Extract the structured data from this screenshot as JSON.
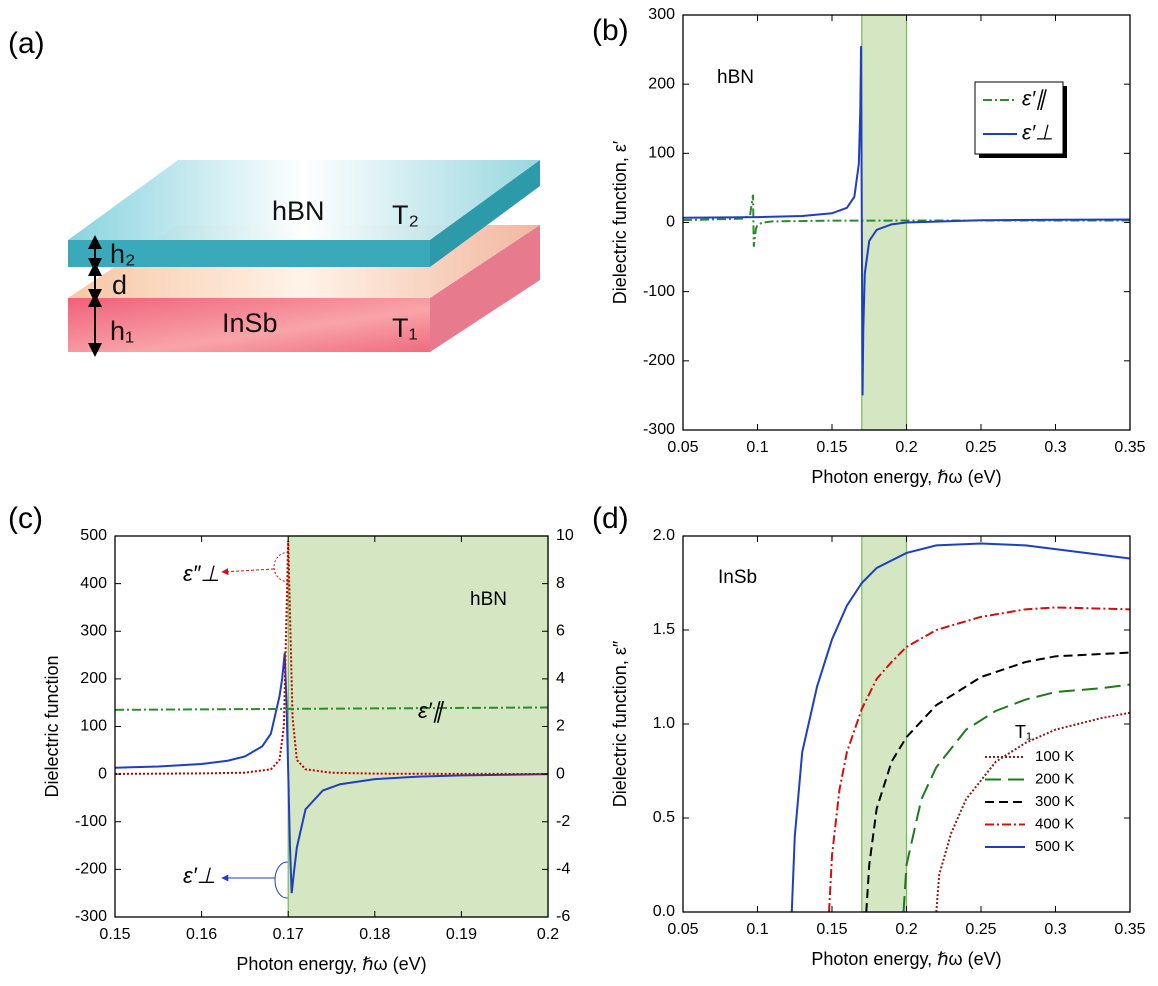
{
  "diagram": {
    "label": "(a)",
    "top_layer": "hBN",
    "top_temperature": "T₂",
    "bottom_layer": "InSb",
    "bottom_temperature": "T₁",
    "top_thickness": "h₂",
    "gap": "d",
    "bottom_thickness": "h₁"
  },
  "chart_data": [
    {
      "type": "line",
      "label": "(b)",
      "xlabel": "Photon energy, ℏω (eV)",
      "ylabel": "Dielectric function, ε′",
      "annotations": [
        {
          "text": "hBN",
          "color": "#000000"
        }
      ],
      "xlim": [
        0.05,
        0.35
      ],
      "xticks": [
        0.05,
        0.1,
        0.15,
        0.2,
        0.25,
        0.3,
        0.35
      ],
      "ylim": [
        -300,
        300
      ],
      "yticks": [
        -300,
        -200,
        -100,
        0,
        100,
        200,
        300
      ],
      "grid": false,
      "shaded_region": [
        0.17,
        0.2
      ],
      "shade_color": "#d5e6c3",
      "legend": "upper right",
      "series": [
        {
          "name": "ε′∥",
          "color": "#2e8b2e",
          "dash": "dash-dot",
          "x": [
            0.05,
            0.09,
            0.095,
            0.097,
            0.0975,
            0.099,
            0.1,
            0.103,
            0.11,
            0.15,
            0.2,
            0.25,
            0.3,
            0.35
          ],
          "values": [
            3.46,
            5.51,
            10.6,
            40,
            -35,
            -8.4,
            -3.97,
            -0.21,
            1.59,
            2.68,
            2.83,
            2.9,
            2.92,
            2.94
          ]
        },
        {
          "name": "ε′⊥",
          "color": "#1f3fbf",
          "dash": "solid",
          "x": [
            0.05,
            0.1,
            0.13,
            0.15,
            0.16,
            0.165,
            0.168,
            0.169,
            0.1695,
            0.17,
            0.1705,
            0.171,
            0.172,
            0.175,
            0.18,
            0.19,
            0.2,
            0.25,
            0.3,
            0.35
          ],
          "values": [
            6.92,
            7.73,
            9.37,
            13.3,
            21.2,
            37.1,
            84.8,
            164,
            255,
            5,
            -250,
            -154,
            -74,
            -26.5,
            -10.6,
            -2.64,
            0,
            3.26,
            3.98,
            4.29
          ]
        }
      ]
    },
    {
      "type": "line",
      "label": "(c)",
      "xlabel": "Photon energy, ℏω (eV)",
      "ylabel": "Dielectric function",
      "annotations": [
        {
          "text": "hBN",
          "color": "#1a3a1a"
        },
        {
          "text": "ε″⊥",
          "color": "#c00000"
        },
        {
          "text": "ε′∥",
          "color": "#1e7a1e"
        },
        {
          "text": "ε′⊥",
          "color": "#1f3fbf"
        }
      ],
      "xlim": [
        0.15,
        0.2
      ],
      "xticks": [
        0.15,
        0.16,
        0.17,
        0.18,
        0.19,
        0.2
      ],
      "ylim": [
        -300,
        500
      ],
      "yticks": [
        -300,
        -200,
        -100,
        0,
        100,
        200,
        300,
        400,
        500
      ],
      "y2lim": [
        -6,
        10
      ],
      "y2ticks": [
        -6,
        -4,
        -2,
        0,
        2,
        4,
        6,
        8,
        10
      ],
      "grid": false,
      "shaded_region": [
        0.17,
        0.2
      ],
      "shade_color": "#d5e6c3",
      "series": [
        {
          "color": "#1f3fbf",
          "dash": "solid",
          "x": [
            0.15,
            0.155,
            0.16,
            0.163,
            0.165,
            0.167,
            0.168,
            0.169,
            0.1693,
            0.1696,
            0.1698,
            0.17,
            0.1702,
            0.1704,
            0.1707,
            0.171,
            0.172,
            0.174,
            0.176,
            0.18,
            0.185,
            0.19,
            0.2
          ],
          "values": [
            13.3,
            16,
            21.2,
            28.1,
            37.1,
            58.3,
            84.8,
            164,
            200,
            255,
            150,
            5,
            -150,
            -250,
            -200,
            -154,
            -74,
            -34.4,
            -21.2,
            -10.6,
            -5.28,
            -2.64,
            0
          ]
        },
        {
          "color": "#c00000",
          "dash": "dot",
          "x": [
            0.15,
            0.16,
            0.165,
            0.168,
            0.169,
            0.1695,
            0.17,
            0.1705,
            0.171,
            0.172,
            0.175,
            0.18,
            0.19,
            0.2
          ],
          "values": [
            0.5,
            1.5,
            3,
            10,
            30,
            100,
            490,
            120,
            30,
            10,
            3,
            1,
            0.5,
            0.3
          ]
        },
        {
          "color": "#2e8b2e",
          "dash": "dash-dot",
          "axis": "y2",
          "x": [
            0.15,
            0.16,
            0.17,
            0.18,
            0.19,
            0.2
          ],
          "values": [
            2.7,
            2.72,
            2.74,
            2.76,
            2.78,
            2.8
          ]
        }
      ]
    },
    {
      "type": "line",
      "label": "(d)",
      "xlabel": "Photon energy, ℏω (eV)",
      "ylabel": "Dielectric function, ε″",
      "annotations": [
        {
          "text": "InSb",
          "color": "#000000"
        }
      ],
      "xlim": [
        0.05,
        0.35
      ],
      "xticks": [
        0.05,
        0.1,
        0.15,
        0.2,
        0.25,
        0.3,
        0.35
      ],
      "ylim": [
        0,
        2
      ],
      "yticks": [
        {
          "value": 0,
          "label": "0.0"
        },
        0.5,
        {
          "value": 1,
          "label": "1.0"
        },
        1.5,
        {
          "value": 2,
          "label": "2.0"
        }
      ],
      "grid": false,
      "shaded_region": [
        0.17,
        0.2
      ],
      "shade_color": "#d5e6c3",
      "legend": "lower right",
      "legend_title": "T₁",
      "series": [
        {
          "name": "100 K",
          "color": "#8b1a1a",
          "dash": "dot",
          "x": [
            0.22,
            0.222,
            0.23,
            0.24,
            0.26,
            0.28,
            0.3,
            0.33,
            0.35
          ],
          "values": [
            0,
            0.2,
            0.42,
            0.6,
            0.8,
            0.9,
            0.97,
            1.03,
            1.06
          ]
        },
        {
          "name": "200 K",
          "color": "#1e7a1e",
          "dash": "long-dash",
          "x": [
            0.198,
            0.2,
            0.21,
            0.22,
            0.24,
            0.26,
            0.28,
            0.3,
            0.33,
            0.35
          ],
          "values": [
            0,
            0.25,
            0.6,
            0.77,
            0.97,
            1.07,
            1.13,
            1.17,
            1.19,
            1.21
          ]
        },
        {
          "name": "300 K",
          "color": "#000000",
          "dash": "dash",
          "x": [
            0.173,
            0.175,
            0.18,
            0.19,
            0.2,
            0.22,
            0.25,
            0.28,
            0.3,
            0.35
          ],
          "values": [
            0,
            0.25,
            0.55,
            0.8,
            0.93,
            1.1,
            1.25,
            1.33,
            1.36,
            1.38
          ]
        },
        {
          "name": "400 K",
          "color": "#d01010",
          "dash": "dash-dot",
          "x": [
            0.148,
            0.15,
            0.155,
            0.16,
            0.17,
            0.18,
            0.19,
            0.2,
            0.22,
            0.25,
            0.28,
            0.3,
            0.35
          ],
          "values": [
            0,
            0.3,
            0.65,
            0.85,
            1.08,
            1.24,
            1.33,
            1.41,
            1.5,
            1.57,
            1.61,
            1.62,
            1.61
          ]
        },
        {
          "name": "500 K",
          "color": "#1f3fbf",
          "dash": "solid",
          "x": [
            0.123,
            0.125,
            0.13,
            0.14,
            0.15,
            0.16,
            0.17,
            0.18,
            0.2,
            0.22,
            0.25,
            0.28,
            0.3,
            0.35
          ],
          "values": [
            0,
            0.4,
            0.85,
            1.2,
            1.45,
            1.63,
            1.75,
            1.83,
            1.91,
            1.95,
            1.96,
            1.95,
            1.93,
            1.88
          ]
        }
      ]
    }
  ]
}
